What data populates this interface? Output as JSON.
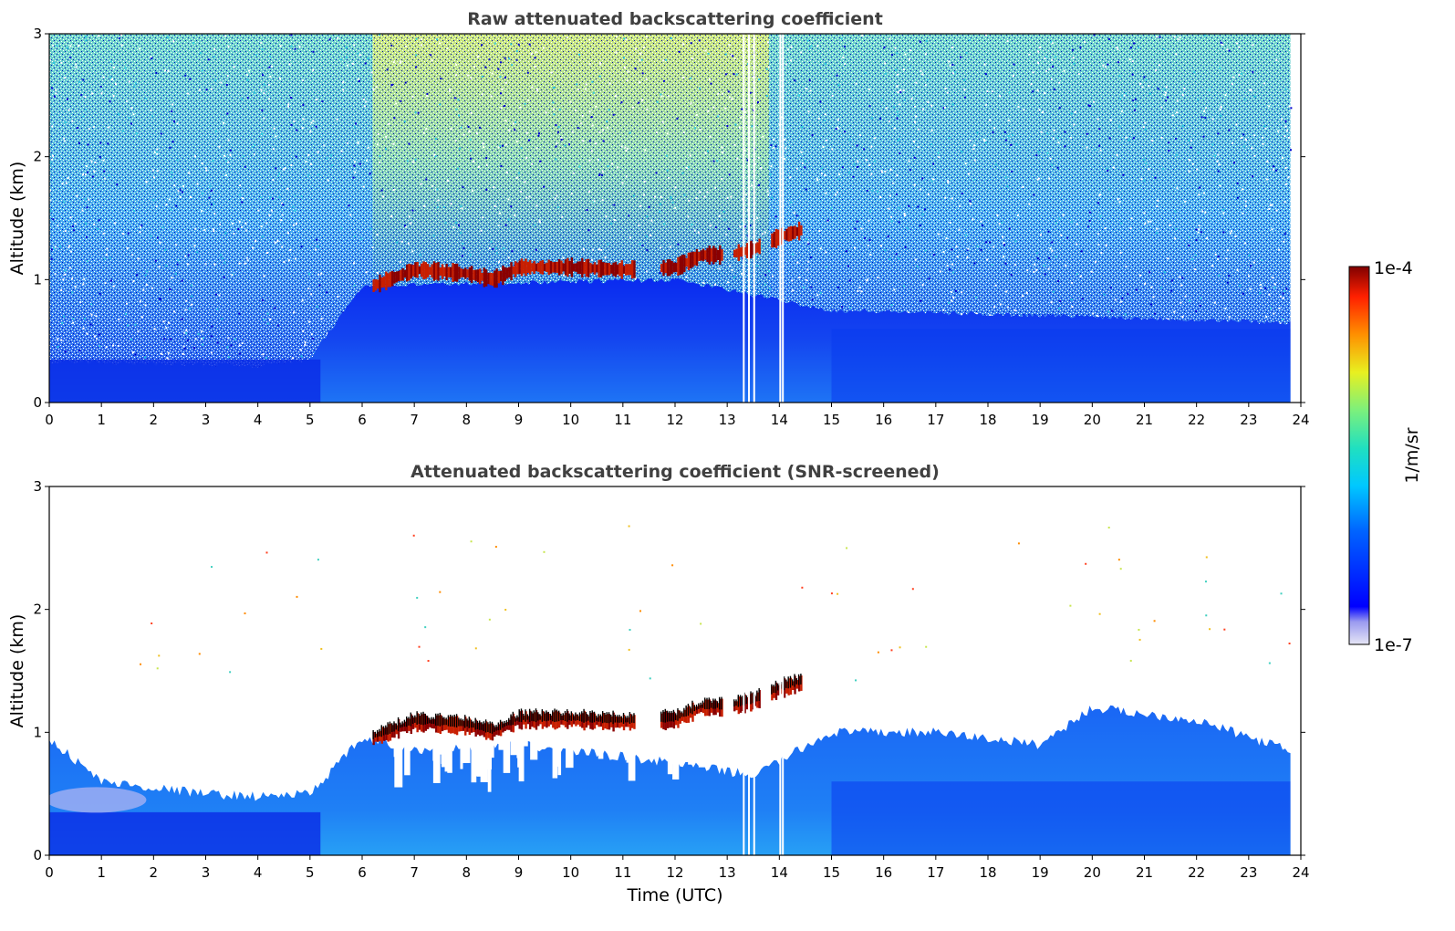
{
  "chart_data": [
    {
      "type": "heatmap",
      "title": "Raw attenuated backscattering coefficient",
      "xlabel": "",
      "ylabel": "Altitude (km)",
      "xlim": [
        0,
        24
      ],
      "ylim": [
        0,
        3
      ],
      "x_ticks": [
        "0",
        "1",
        "2",
        "3",
        "4",
        "5",
        "6",
        "7",
        "8",
        "9",
        "10",
        "11",
        "12",
        "13",
        "14",
        "15",
        "16",
        "17",
        "18",
        "19",
        "20",
        "21",
        "22",
        "23",
        "24"
      ],
      "y_ticks": [
        "0",
        "1",
        "2",
        "3"
      ],
      "data_end_time": 23.8,
      "boundary_layer_top_km": [
        [
          0,
          0.33
        ],
        [
          4,
          0.3
        ],
        [
          5,
          0.35
        ],
        [
          6,
          0.95
        ],
        [
          12,
          1.0
        ],
        [
          15,
          0.75
        ],
        [
          20,
          0.7
        ],
        [
          23.8,
          0.65
        ]
      ],
      "cloud_layer": [
        [
          6.2,
          0.95
        ],
        [
          7,
          1.08
        ],
        [
          8,
          1.05
        ],
        [
          8.5,
          1.0
        ],
        [
          9,
          1.1
        ],
        [
          10,
          1.1
        ],
        [
          11,
          1.08
        ],
        [
          12,
          1.1
        ],
        [
          12.5,
          1.2
        ],
        [
          13,
          1.2
        ],
        [
          13.5,
          1.25
        ],
        [
          14,
          1.35
        ],
        [
          14.4,
          1.4
        ]
      ],
      "data_gaps_time": [
        13.3,
        13.4,
        13.5,
        14.0,
        14.05
      ]
    },
    {
      "type": "heatmap",
      "title": "Attenuated backscattering coefficient (SNR-screened)",
      "xlabel": "Time (UTC)",
      "ylabel": "Altitude (km)",
      "xlim": [
        0,
        24
      ],
      "ylim": [
        0,
        3
      ],
      "x_ticks": [
        "0",
        "1",
        "2",
        "3",
        "4",
        "5",
        "6",
        "7",
        "8",
        "9",
        "10",
        "11",
        "12",
        "13",
        "14",
        "15",
        "16",
        "17",
        "18",
        "19",
        "20",
        "21",
        "22",
        "23",
        "24"
      ],
      "y_ticks": [
        "0",
        "1",
        "2",
        "3"
      ],
      "data_end_time": 23.8,
      "signal_top_km": [
        [
          0,
          0.95
        ],
        [
          1,
          0.6
        ],
        [
          2,
          0.55
        ],
        [
          3,
          0.5
        ],
        [
          4,
          0.48
        ],
        [
          5,
          0.5
        ],
        [
          6,
          0.95
        ],
        [
          7,
          0.85
        ],
        [
          9,
          0.9
        ],
        [
          12,
          0.75
        ],
        [
          13.5,
          0.65
        ],
        [
          15,
          1.0
        ],
        [
          17,
          1.0
        ],
        [
          19,
          0.9
        ],
        [
          20,
          1.2
        ],
        [
          22,
          1.1
        ],
        [
          23.8,
          0.85
        ]
      ],
      "cloud_layer": [
        [
          6.2,
          0.95
        ],
        [
          7,
          1.08
        ],
        [
          8,
          1.05
        ],
        [
          8.5,
          1.0
        ],
        [
          9,
          1.1
        ],
        [
          10,
          1.1
        ],
        [
          11,
          1.08
        ],
        [
          12,
          1.1
        ],
        [
          12.5,
          1.2
        ],
        [
          13,
          1.2
        ],
        [
          13.5,
          1.25
        ],
        [
          14,
          1.35
        ],
        [
          14.4,
          1.4
        ]
      ],
      "data_gaps_time": [
        13.3,
        13.4,
        13.5,
        14.0,
        14.05
      ]
    }
  ],
  "colorbar": {
    "label": "1/m/sr",
    "min_label": "1e-7",
    "max_label": "1e-4",
    "colormap": "jet"
  }
}
